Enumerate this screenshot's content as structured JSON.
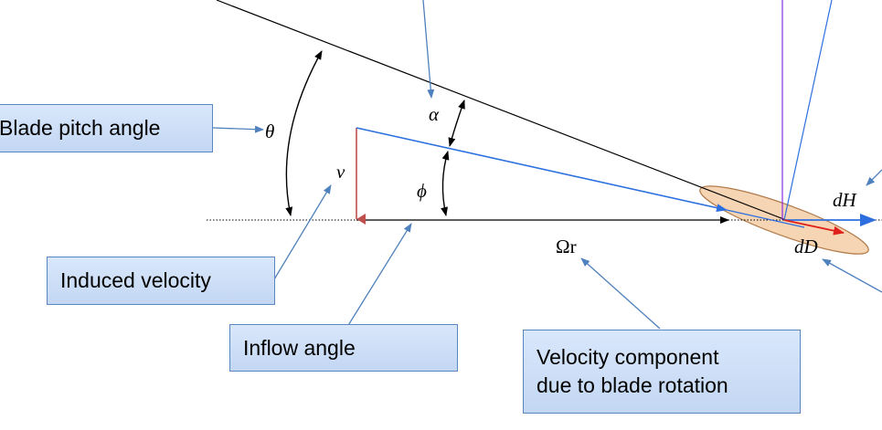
{
  "callouts": {
    "blade_pitch": "Blade pitch angle",
    "induced_velocity": "Induced velocity",
    "inflow_angle": "Inflow angle",
    "rotation_line1": "Velocity component",
    "rotation_line2": "due to blade rotation"
  },
  "symbols": {
    "theta": "θ",
    "alpha": "α",
    "v": "v",
    "phi": "ϕ",
    "omega_r": "Ωr",
    "dH": "dH",
    "dD": "dD"
  },
  "colors": {
    "chord": "#000000",
    "relative_velocity": "#2e6fe0",
    "induced_velocity": "#c0504d",
    "drag": "#e0201a",
    "lift_line": "#8b2be0",
    "leader": "#4f81bd",
    "airfoil_fill": "#f5d5b3",
    "airfoil_stroke": "#b07a4a",
    "callout_fill": "#d6e4f8",
    "callout_border": "#5b87c0"
  }
}
